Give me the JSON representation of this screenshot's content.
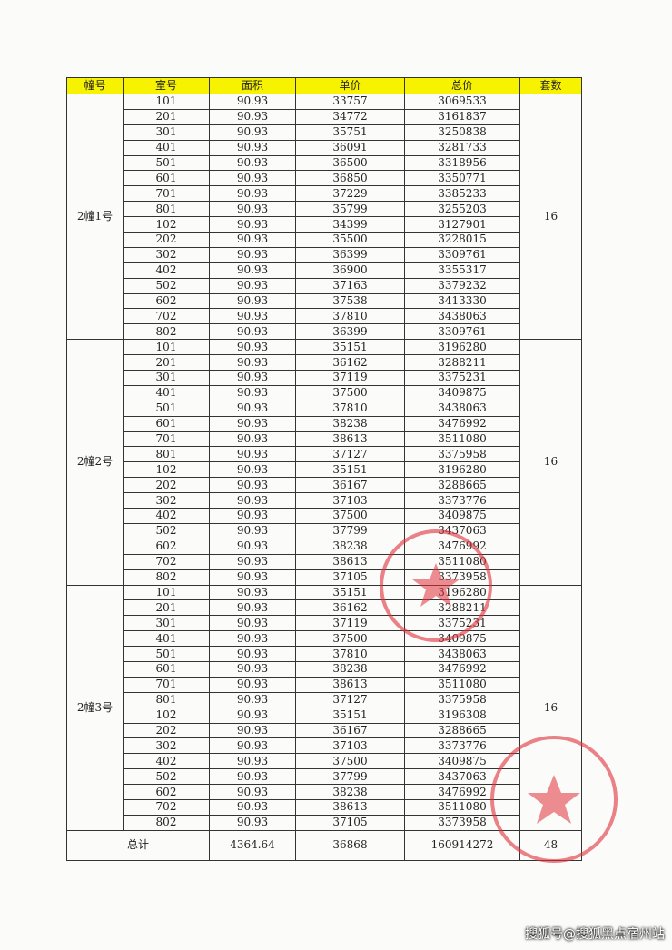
{
  "table": {
    "headers": [
      "幢号",
      "室号",
      "面积",
      "单价",
      "总价",
      "套数"
    ],
    "header_color": "#f7f200",
    "groups": [
      {
        "building": "2幢1号",
        "count": "16",
        "rows": [
          [
            "101",
            "90.93",
            "33757",
            "3069533"
          ],
          [
            "201",
            "90.93",
            "34772",
            "3161837"
          ],
          [
            "301",
            "90.93",
            "35751",
            "3250838"
          ],
          [
            "401",
            "90.93",
            "36091",
            "3281733"
          ],
          [
            "501",
            "90.93",
            "36500",
            "3318956"
          ],
          [
            "601",
            "90.93",
            "36850",
            "3350771"
          ],
          [
            "701",
            "90.93",
            "37229",
            "3385233"
          ],
          [
            "801",
            "90.93",
            "35799",
            "3255203"
          ],
          [
            "102",
            "90.93",
            "34399",
            "3127901"
          ],
          [
            "202",
            "90.93",
            "35500",
            "3228015"
          ],
          [
            "302",
            "90.93",
            "36399",
            "3309761"
          ],
          [
            "402",
            "90.93",
            "36900",
            "3355317"
          ],
          [
            "502",
            "90.93",
            "37163",
            "3379232"
          ],
          [
            "602",
            "90.93",
            "37538",
            "3413330"
          ],
          [
            "702",
            "90.93",
            "37810",
            "3438063"
          ],
          [
            "802",
            "90.93",
            "36399",
            "3309761"
          ]
        ]
      },
      {
        "building": "2幢2号",
        "count": "16",
        "rows": [
          [
            "101",
            "90.93",
            "35151",
            "3196280"
          ],
          [
            "201",
            "90.93",
            "36162",
            "3288211"
          ],
          [
            "301",
            "90.93",
            "37119",
            "3375231"
          ],
          [
            "401",
            "90.93",
            "37500",
            "3409875"
          ],
          [
            "501",
            "90.93",
            "37810",
            "3438063"
          ],
          [
            "601",
            "90.93",
            "38238",
            "3476992"
          ],
          [
            "701",
            "90.93",
            "38613",
            "3511080"
          ],
          [
            "801",
            "90.93",
            "37127",
            "3375958"
          ],
          [
            "102",
            "90.93",
            "35151",
            "3196280"
          ],
          [
            "202",
            "90.93",
            "36167",
            "3288665"
          ],
          [
            "302",
            "90.93",
            "37103",
            "3373776"
          ],
          [
            "402",
            "90.93",
            "37500",
            "3409875"
          ],
          [
            "502",
            "90.93",
            "37799",
            "3437063"
          ],
          [
            "602",
            "90.93",
            "38238",
            "3476992"
          ],
          [
            "702",
            "90.93",
            "38613",
            "3511080"
          ],
          [
            "802",
            "90.93",
            "37105",
            "3373958"
          ]
        ]
      },
      {
        "building": "2幢3号",
        "count": "16",
        "rows": [
          [
            "101",
            "90.93",
            "35151",
            "3196280"
          ],
          [
            "201",
            "90.93",
            "36162",
            "3288211"
          ],
          [
            "301",
            "90.93",
            "37119",
            "3375231"
          ],
          [
            "401",
            "90.93",
            "37500",
            "3409875"
          ],
          [
            "501",
            "90.93",
            "37810",
            "3438063"
          ],
          [
            "601",
            "90.93",
            "38238",
            "3476992"
          ],
          [
            "701",
            "90.93",
            "38613",
            "3511080"
          ],
          [
            "801",
            "90.93",
            "37127",
            "3375958"
          ],
          [
            "102",
            "90.93",
            "35151",
            "3196308"
          ],
          [
            "202",
            "90.93",
            "36167",
            "3288665"
          ],
          [
            "302",
            "90.93",
            "37103",
            "3373776"
          ],
          [
            "402",
            "90.93",
            "37500",
            "3409875"
          ],
          [
            "502",
            "90.93",
            "37799",
            "3437063"
          ],
          [
            "602",
            "90.93",
            "38238",
            "3476992"
          ],
          [
            "702",
            "90.93",
            "38613",
            "3511080"
          ],
          [
            "802",
            "90.93",
            "37105",
            "3373958"
          ]
        ]
      }
    ],
    "total": {
      "label": "总计",
      "area": "4364.64",
      "unit_price": "36868",
      "total_price": "160914272",
      "count": "48"
    }
  },
  "stamp_color": "#e0303a",
  "watermark": "搜狐号@搜狐黑点宿州站"
}
